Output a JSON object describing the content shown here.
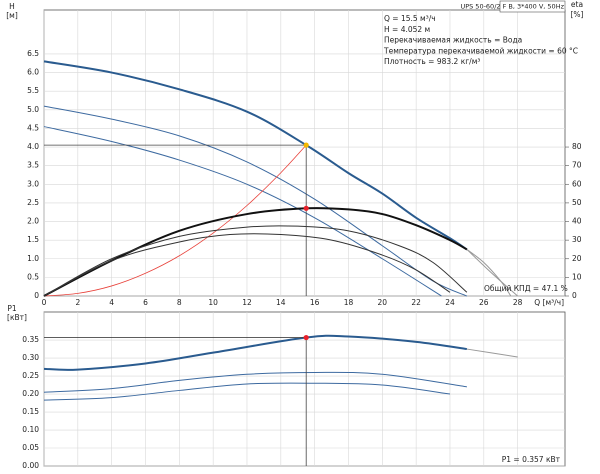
{
  "chart_data": [
    {
      "type": "line",
      "ylabel": "H",
      "yunit": "[м]",
      "y2label": "eta",
      "y2unit": "[%]",
      "xlabel": "Q [м³/ч]",
      "xlim": [
        0,
        30.8
      ],
      "ylim": [
        0,
        7.68
      ],
      "y2lim": [
        0,
        153.6
      ],
      "xticks": [
        0,
        2,
        4,
        6,
        8,
        10,
        12,
        14,
        16,
        18,
        20,
        22,
        24,
        26,
        28
      ],
      "yticks": [
        0,
        0.5,
        {
          "value": 1,
          "label": "1.0"
        },
        1.5,
        {
          "value": 2,
          "label": "2.0"
        },
        2.5,
        {
          "value": 3,
          "label": "3.0"
        },
        3.5,
        {
          "value": 4,
          "label": "4.0"
        },
        4.5,
        {
          "value": 5,
          "label": "5.0"
        },
        5.5,
        {
          "value": 6,
          "label": "6.0"
        },
        6.5
      ],
      "y2ticks": [
        0,
        10,
        20,
        30,
        40,
        50,
        60,
        70,
        80
      ],
      "grid": true,
      "series": [
        {
          "color": "#2a5b8f",
          "line_width": 2,
          "x": [
            0,
            4,
            8,
            12,
            15.5,
            18,
            20,
            22,
            24,
            25
          ],
          "values": [
            6.3,
            6.0,
            5.55,
            4.95,
            4.052,
            3.3,
            2.75,
            2.1,
            1.55,
            1.25
          ]
        },
        {
          "color": "#999999",
          "line_width": 1,
          "x": [
            25,
            26.5,
            28
          ],
          "values": [
            1.25,
            0.6,
            0
          ]
        },
        {
          "color": "#3d6aa0",
          "line_width": 1,
          "x": [
            0,
            4,
            8,
            12,
            16,
            20,
            23,
            25
          ],
          "values": [
            5.1,
            4.75,
            4.3,
            3.6,
            2.6,
            1.35,
            0.4,
            0
          ]
        },
        {
          "color": "#3d6aa0",
          "line_width": 1,
          "x": [
            0,
            4,
            8,
            12,
            16,
            20,
            23.5
          ],
          "values": [
            4.55,
            4.15,
            3.65,
            3.0,
            2.1,
            1.0,
            0
          ]
        },
        {
          "color": "#e8413a",
          "line_width": 0.8,
          "x": [
            0,
            2,
            4,
            6,
            8,
            10,
            12,
            14,
            15.5
          ],
          "values": [
            0,
            0.07,
            0.27,
            0.61,
            1.08,
            1.69,
            2.43,
            3.31,
            4.052
          ]
        },
        {
          "color": "#111111",
          "line_width": 2,
          "axis": "y2",
          "x": [
            0,
            4,
            8,
            12,
            15.5,
            18,
            20,
            22,
            24,
            25
          ],
          "values": [
            0,
            19,
            35,
            44,
            47.1,
            46.5,
            44,
            38,
            30,
            25
          ]
        },
        {
          "color": "#999999",
          "line_width": 1,
          "axis": "y2",
          "x": [
            25,
            26,
            27,
            27.6
          ],
          "values": [
            25,
            18,
            8,
            0
          ]
        },
        {
          "color": "#333333",
          "line_width": 1,
          "axis": "y2",
          "x": [
            0,
            4,
            8,
            12,
            15,
            18,
            21,
            23,
            25
          ],
          "values": [
            0,
            20,
            32,
            37,
            37.5,
            35,
            27,
            18,
            2
          ]
        },
        {
          "color": "#333333",
          "line_width": 1,
          "axis": "y2",
          "x": [
            0,
            4,
            8,
            11,
            14,
            17,
            20,
            22,
            24
          ],
          "values": [
            0,
            19,
            29,
            33,
            33,
            30,
            22,
            14,
            2
          ]
        }
      ],
      "points": [
        {
          "x": 15.5,
          "y": 4.052,
          "color": "#f5b800"
        },
        {
          "x": 15.5,
          "y": 47.1,
          "axis": "y2",
          "color": "#e8202a"
        }
      ],
      "info_header": "UPS 50-60/2 F B, 3*400 V, 50Hz",
      "info_lines": [
        "Q = 15.5 м³/ч",
        "H = 4.052 м",
        "Перекачиваемая жидкость = Вода",
        "Температура перекачиваемой жидкости = 60 °C",
        "Плотность = 983.2 кг/м³"
      ],
      "note": "Общий КПД = 47.1 %"
    },
    {
      "type": "line",
      "ylabel": "P1",
      "yunit": "[кВт]",
      "xlim": [
        0,
        30.8
      ],
      "ylim": [
        0,
        0.428
      ],
      "yticks": [
        {
          "value": 0,
          "label": "0.00"
        },
        0.05,
        {
          "value": 0.1,
          "label": "0.10"
        },
        0.15,
        {
          "value": 0.2,
          "label": "0.20"
        },
        0.25,
        {
          "value": 0.3,
          "label": "0.30"
        },
        0.35
      ],
      "grid": true,
      "series": [
        {
          "color": "#2a5b8f",
          "line_width": 2,
          "x": [
            0,
            2,
            6,
            10,
            15.5,
            18,
            22,
            25
          ],
          "values": [
            0.27,
            0.268,
            0.285,
            0.315,
            0.357,
            0.36,
            0.345,
            0.325
          ]
        },
        {
          "color": "#999999",
          "line_width": 1,
          "x": [
            25,
            28
          ],
          "values": [
            0.325,
            0.303
          ]
        },
        {
          "color": "#3d6aa0",
          "line_width": 1,
          "x": [
            0,
            4,
            8,
            12,
            16,
            20,
            25
          ],
          "values": [
            0.205,
            0.215,
            0.238,
            0.255,
            0.26,
            0.255,
            0.22
          ]
        },
        {
          "color": "#3d6aa0",
          "line_width": 1,
          "x": [
            0,
            4,
            8,
            12,
            16,
            20,
            24
          ],
          "values": [
            0.183,
            0.19,
            0.21,
            0.228,
            0.23,
            0.225,
            0.2
          ]
        }
      ],
      "points": [
        {
          "x": 15.5,
          "y": 0.357,
          "color": "#e8202a"
        }
      ],
      "note": "P1 = 0.357 кВт"
    }
  ]
}
